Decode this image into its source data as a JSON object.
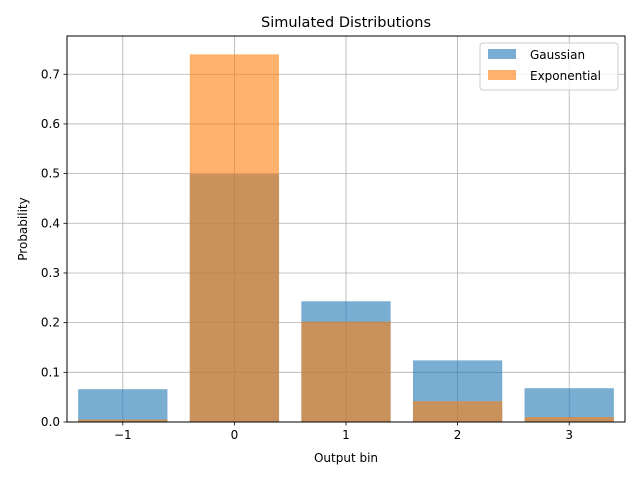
{
  "chart_data": {
    "type": "bar",
    "title": "Simulated Distributions",
    "xlabel": "Output bin",
    "ylabel": "Probability",
    "categories": [
      -1,
      0,
      1,
      2,
      3
    ],
    "x_tick_labels": [
      "−1",
      "0",
      "1",
      "2",
      "3"
    ],
    "xlim": [
      -1.5,
      3.5
    ],
    "ylim": [
      0,
      0.777
    ],
    "y_ticks": [
      0.0,
      0.1,
      0.2,
      0.3,
      0.4,
      0.5,
      0.6,
      0.7
    ],
    "y_tick_labels": [
      "0.0",
      "0.1",
      "0.2",
      "0.3",
      "0.4",
      "0.5",
      "0.6",
      "0.7"
    ],
    "bar_width": 0.8,
    "grid": true,
    "legend_position": "top-right",
    "series": [
      {
        "name": "Gaussian",
        "color": "#1f77b4",
        "alpha": 0.6,
        "values": [
          0.066,
          0.499,
          0.243,
          0.124,
          0.068
        ]
      },
      {
        "name": "Exponential",
        "color": "#ff7f0e",
        "alpha": 0.6,
        "values": [
          0.005,
          0.74,
          0.202,
          0.042,
          0.01
        ]
      }
    ]
  }
}
